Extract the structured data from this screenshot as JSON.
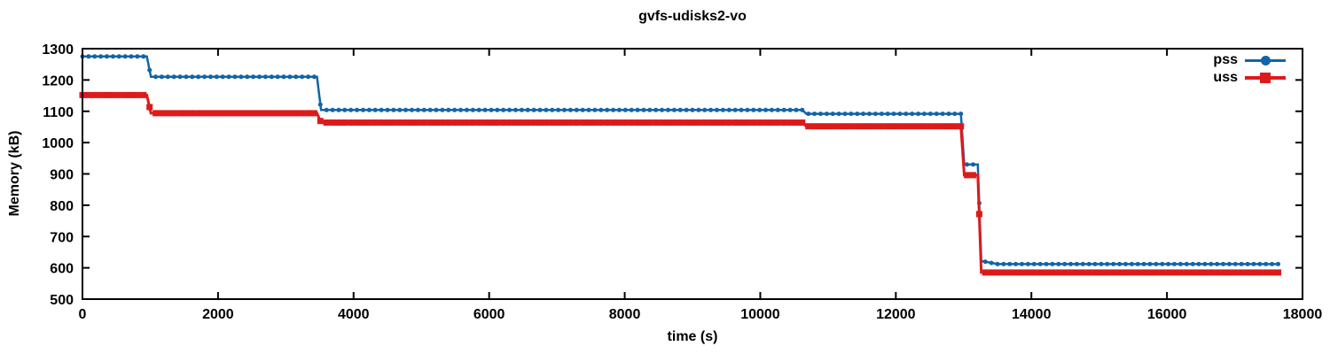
{
  "title": "gvfs-udisks2-vo",
  "colors": {
    "pss": "#1164a8",
    "uss": "#dd1a1a",
    "axis": "#000000",
    "background": "#ffffff"
  },
  "legend": {
    "items": [
      {
        "label": "pss",
        "marker": "circle",
        "color": "#1164a8"
      },
      {
        "label": "uss",
        "marker": "square",
        "color": "#dd1a1a"
      }
    ]
  },
  "chart_data": {
    "type": "line",
    "title": "gvfs-udisks2-vo",
    "xlabel": "time (s)",
    "ylabel": "Memory (kB)",
    "xlim": [
      0,
      18000
    ],
    "ylim": [
      500,
      1300
    ],
    "x_ticks": [
      0,
      2000,
      4000,
      6000,
      8000,
      10000,
      12000,
      14000,
      16000,
      18000
    ],
    "y_ticks": [
      500,
      600,
      700,
      800,
      900,
      1000,
      1100,
      1200,
      1300
    ],
    "grid": false,
    "legend_position": "top-right-inside",
    "marker_interval_s": 90,
    "series": [
      {
        "name": "pss",
        "color": "#1164a8",
        "marker": "circle",
        "marker_size": 5,
        "line_width": 2.5,
        "points": [
          [
            0,
            1275
          ],
          [
            950,
            1275
          ],
          [
            1010,
            1210
          ],
          [
            3460,
            1210
          ],
          [
            3520,
            1104
          ],
          [
            10620,
            1104
          ],
          [
            10680,
            1092
          ],
          [
            12960,
            1092
          ],
          [
            13010,
            930
          ],
          [
            13210,
            930
          ],
          [
            13260,
            622
          ],
          [
            13500,
            612
          ],
          [
            17650,
            612
          ]
        ]
      },
      {
        "name": "uss",
        "color": "#dd1a1a",
        "marker": "square",
        "marker_size": 7,
        "line_width": 3,
        "points": [
          [
            0,
            1152
          ],
          [
            950,
            1152
          ],
          [
            1010,
            1094
          ],
          [
            3460,
            1094
          ],
          [
            3520,
            1064
          ],
          [
            10620,
            1064
          ],
          [
            10680,
            1052
          ],
          [
            12960,
            1052
          ],
          [
            13010,
            896
          ],
          [
            13210,
            896
          ],
          [
            13260,
            585
          ],
          [
            17650,
            585
          ]
        ]
      }
    ]
  }
}
